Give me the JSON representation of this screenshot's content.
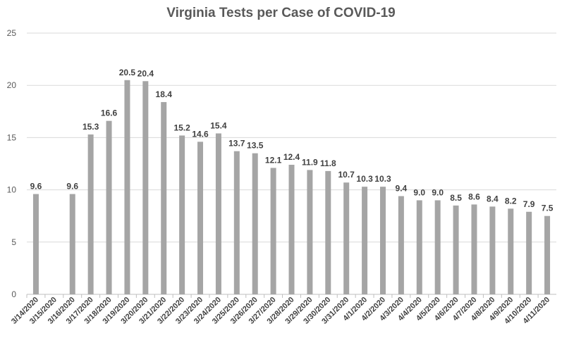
{
  "chart_data": {
    "type": "bar",
    "title": "Virginia Tests per Case of COVID-19",
    "xlabel": "",
    "ylabel": "",
    "ylim": [
      0,
      25
    ],
    "yticks": [
      0,
      5,
      10,
      15,
      20,
      25
    ],
    "grid": true,
    "legend": "none",
    "bar_color": "#a5a5a5",
    "categories": [
      "3/14/2020",
      "3/15/2020",
      "3/16/2020",
      "3/17/2020",
      "3/18/2020",
      "3/19/2020",
      "3/20/2020",
      "3/21/2020",
      "3/22/2020",
      "3/23/2020",
      "3/24/2020",
      "3/25/2020",
      "3/26/2020",
      "3/27/2020",
      "3/28/2020",
      "3/29/2020",
      "3/30/2020",
      "3/31/2020",
      "4/1/2020",
      "4/2/2020",
      "4/3/2020",
      "4/4/2020",
      "4/5/2020",
      "4/6/2020",
      "4/7/2020",
      "4/8/2020",
      "4/9/2020",
      "4/10/2020",
      "4/11/2020"
    ],
    "values": [
      9.6,
      null,
      9.6,
      15.3,
      16.6,
      20.5,
      20.4,
      18.4,
      15.2,
      14.6,
      15.4,
      13.7,
      13.5,
      12.1,
      12.4,
      11.9,
      11.8,
      10.7,
      10.3,
      10.3,
      9.4,
      9.0,
      9.0,
      8.5,
      8.6,
      8.4,
      8.2,
      7.9,
      7.5
    ],
    "data_labels": [
      "9.6",
      "",
      "9.6",
      "15.3",
      "16.6",
      "20.5",
      "20.4",
      "18.4",
      "15.2",
      "14.6",
      "15.4",
      "13.7",
      "13.5",
      "12.1",
      "12.4",
      "11.9",
      "11.8",
      "10.7",
      "10.3",
      "10.3",
      "9.4",
      "9.0",
      "9.0",
      "8.5",
      "8.6",
      "8.4",
      "8.2",
      "7.9",
      "7.5"
    ]
  }
}
